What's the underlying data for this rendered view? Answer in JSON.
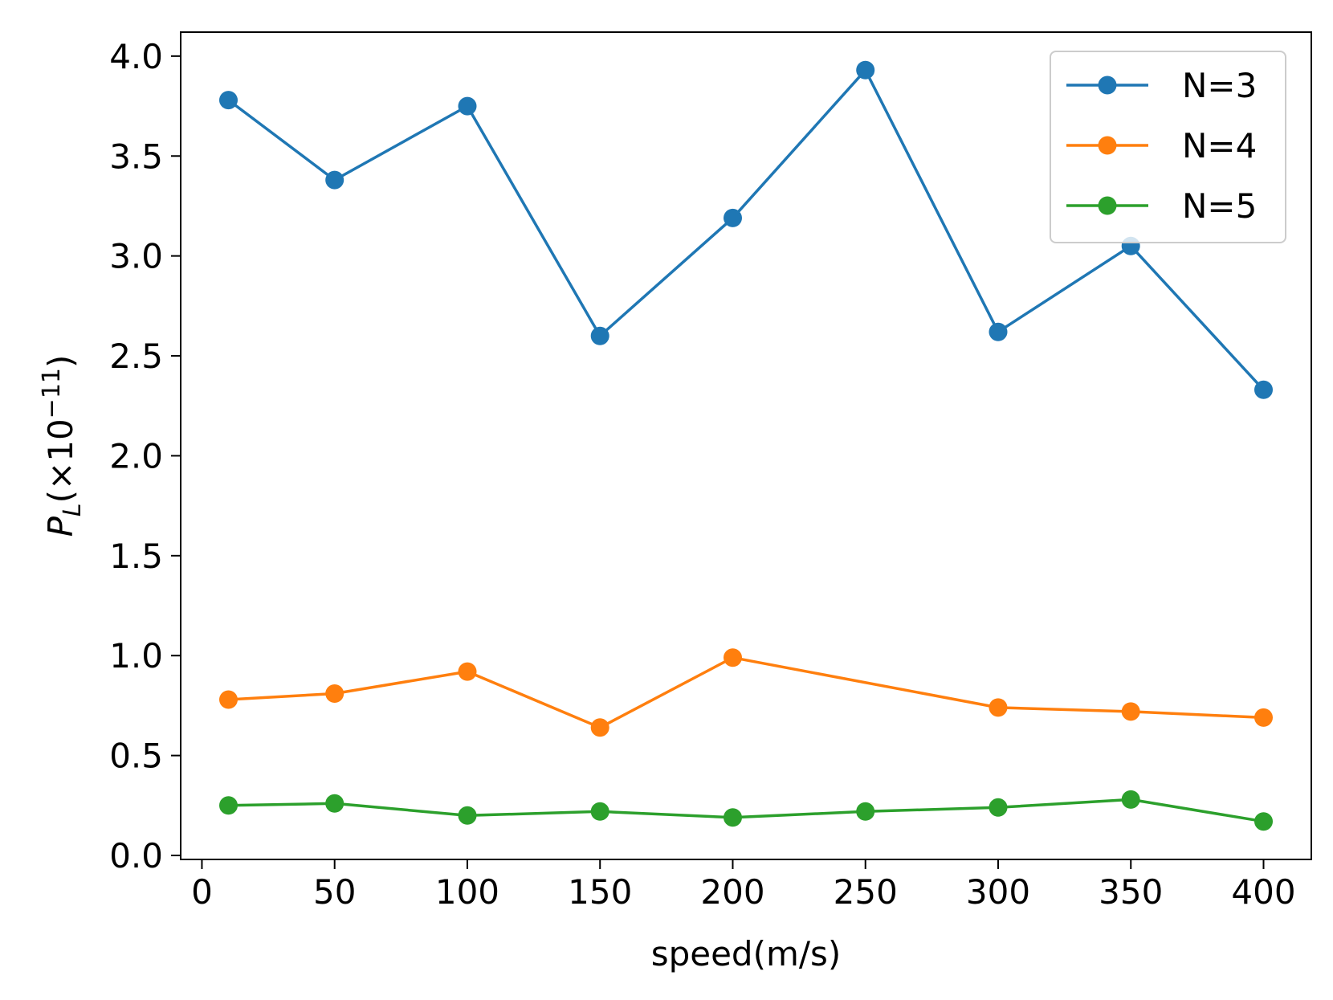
{
  "chart_data": {
    "type": "line",
    "xlabel": "speed(m/s)",
    "ylabel": {
      "base": "P",
      "subscript": "L",
      "prefix": "(×10",
      "exponent": "−11",
      "suffix": ")"
    },
    "xlim": [
      -8,
      418
    ],
    "ylim": [
      -0.02,
      4.12
    ],
    "xticks": [
      0,
      50,
      100,
      150,
      200,
      250,
      300,
      350,
      400
    ],
    "xtick_labels": [
      "0",
      "50",
      "100",
      "150",
      "200",
      "250",
      "300",
      "350",
      "400"
    ],
    "yticks": [
      0.0,
      0.5,
      1.0,
      1.5,
      2.0,
      2.5,
      3.0,
      3.5,
      4.0
    ],
    "ytick_labels": [
      "0.0",
      "0.5",
      "1.0",
      "1.5",
      "2.0",
      "2.5",
      "3.0",
      "3.5",
      "4.0"
    ],
    "x": [
      10,
      50,
      100,
      150,
      200,
      250,
      300,
      350,
      400
    ],
    "series": [
      {
        "name": "N=3",
        "color": "#1f77b4",
        "values": [
          3.78,
          3.38,
          3.75,
          2.6,
          3.19,
          3.93,
          2.62,
          3.05,
          2.33
        ]
      },
      {
        "name": "N=4",
        "color": "#ff7f0e",
        "values": [
          0.78,
          0.81,
          0.92,
          0.64,
          0.99,
          null,
          0.74,
          0.72,
          0.69
        ]
      },
      {
        "name": "N=5",
        "color": "#2ca02c",
        "values": [
          0.25,
          0.26,
          0.2,
          0.22,
          0.19,
          0.22,
          0.24,
          0.28,
          0.17
        ]
      }
    ],
    "grid": false,
    "legend_position": "top-right"
  }
}
